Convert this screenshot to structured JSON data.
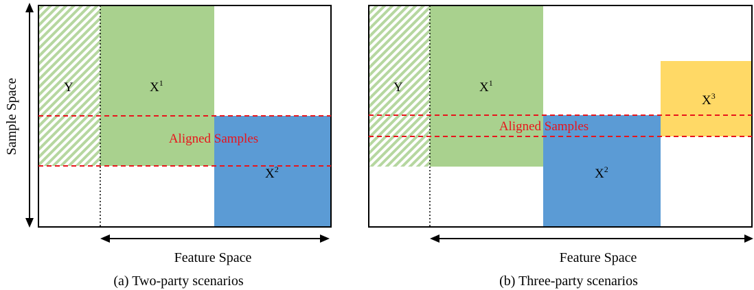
{
  "axis": {
    "sample_space": "Sample Space",
    "feature_space": "Feature Space"
  },
  "panel_a": {
    "y_label": "Y",
    "x1_label": "X",
    "x1_sup": "1",
    "x2_label": "X",
    "x2_sup": "2",
    "aligned": "Aligned Samples",
    "caption": "(a) Two-party scenarios"
  },
  "panel_b": {
    "y_label": "Y",
    "x1_label": "X",
    "x1_sup": "1",
    "x2_label": "X",
    "x2_sup": "2",
    "x3_label": "X",
    "x3_sup": "3",
    "aligned": "Aligned Samples",
    "caption": "(b) Three-party scenarios"
  },
  "colors": {
    "party1_green": "#a9d18e",
    "party2_blue": "#5b9bd5",
    "party3_yellow": "#ffd966",
    "label_hatch": "#c5e0b4",
    "aligned_red": "#e8141b"
  }
}
